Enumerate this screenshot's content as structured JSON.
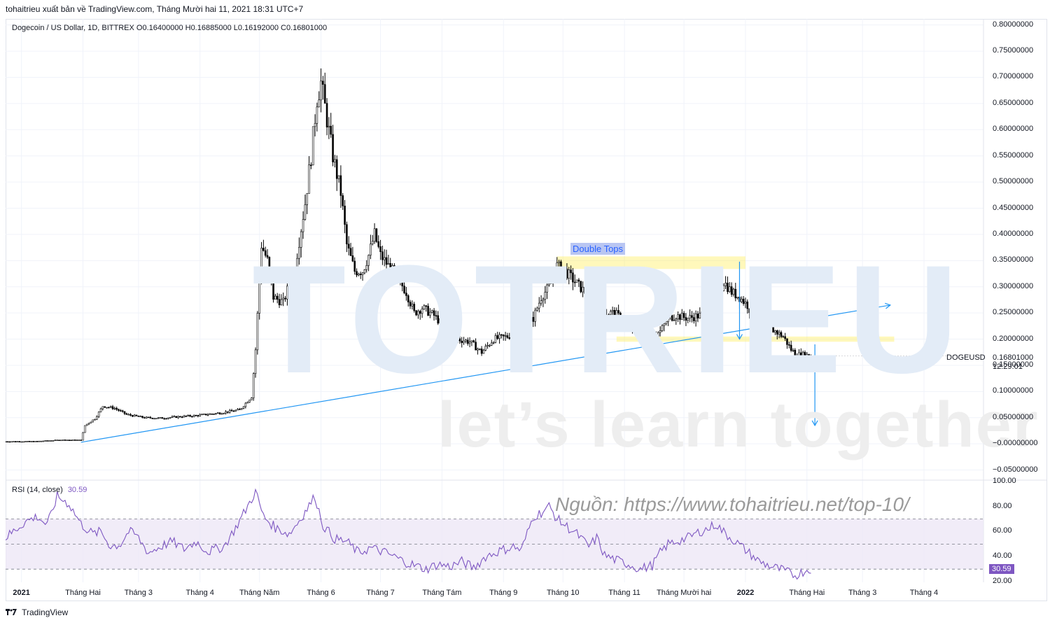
{
  "publisher_line": "tohaitrieu xuất bản về TradingView.com, Tháng Mười hai 11, 2021 18:31 UTC+7",
  "legend": {
    "text": "Dogecoin / US Dollar, 1D, BITTREX  O0.16400000  H0.16885000  L0.16192000  C0.16801000"
  },
  "rsi_legend": {
    "label": "RSI (14, close)",
    "value": "30.59"
  },
  "tags": {
    "symbol": "DOGEUSD",
    "price": "0.16801000",
    "countdown": "12:29:01",
    "rsi": "30.59"
  },
  "annotation": {
    "double_tops": "Double Tops"
  },
  "watermark": {
    "word": "TOTRIEU",
    "tagline": "let’s learn together"
  },
  "source": "Nguồn: https://www.tohaitrieu.net/top-10/",
  "footer": {
    "brand": "TradingView",
    "icon": "tradingview-logo-icon"
  },
  "colors": {
    "candle": "#000000",
    "trendline": "#2196f3",
    "zone": "#ffeb3b",
    "rsi_line": "#7e57c2",
    "rsi_band": "#ede7f6",
    "grid": "#f0f3fa"
  },
  "chart_data": [
    {
      "type": "candlestick",
      "title": "Dogecoin / US Dollar, 1D, BITTREX",
      "ylim": [
        -0.0693,
        0.8116
      ],
      "y_ticks": [
        "0.80000000",
        "0.75000000",
        "0.70000000",
        "0.65000000",
        "0.60000000",
        "0.55000000",
        "0.50000000",
        "0.45000000",
        "0.40000000",
        "0.35000000",
        "0.30000000",
        "0.25000000",
        "0.20000000",
        "0.15000000",
        "0.10000000",
        "0.05000000",
        "−0.00000000",
        "−0.05000000"
      ],
      "x_ticks": [
        "2021",
        "Tháng Hai",
        "Tháng 3",
        "Tháng 4",
        "Tháng Năm",
        "Tháng 6",
        "Tháng 7",
        "Tháng Tám",
        "Tháng 9",
        "Tháng 10",
        "Tháng 11",
        "Tháng Mười hai",
        "2022",
        "Tháng Hai",
        "Tháng 3",
        "Tháng 4"
      ],
      "x_ticks_bold": [
        "2021",
        "2022"
      ],
      "x_day_range": [
        -8,
        485
      ],
      "tick_days": [
        0,
        31,
        59,
        90,
        120,
        151,
        181,
        212,
        243,
        273,
        304,
        334,
        365,
        396,
        424,
        455
      ],
      "close_path": [
        [
          -8,
          0.0045
        ],
        [
          7,
          0.0047
        ],
        [
          20,
          0.0075
        ],
        [
          30,
          0.0072
        ],
        [
          32,
          0.035
        ],
        [
          37,
          0.048
        ],
        [
          41,
          0.072
        ],
        [
          47,
          0.068
        ],
        [
          53,
          0.056
        ],
        [
          62,
          0.05
        ],
        [
          70,
          0.049
        ],
        [
          80,
          0.052
        ],
        [
          88,
          0.054
        ],
        [
          100,
          0.059
        ],
        [
          110,
          0.065
        ],
        [
          116,
          0.09
        ],
        [
          118,
          0.18
        ],
        [
          121,
          0.38
        ],
        [
          124,
          0.35
        ],
        [
          127,
          0.28
        ],
        [
          132,
          0.27
        ],
        [
          138,
          0.34
        ],
        [
          143,
          0.46
        ],
        [
          146,
          0.55
        ],
        [
          149,
          0.66
        ],
        [
          151,
          0.69
        ],
        [
          154,
          0.62
        ],
        [
          157,
          0.55
        ],
        [
          161,
          0.48
        ],
        [
          164,
          0.38
        ],
        [
          168,
          0.33
        ],
        [
          172,
          0.33
        ],
        [
          175,
          0.36
        ],
        [
          178,
          0.4
        ],
        [
          181,
          0.36
        ],
        [
          185,
          0.34
        ],
        [
          189,
          0.32
        ],
        [
          194,
          0.29
        ],
        [
          198,
          0.25
        ],
        [
          202,
          0.26
        ],
        [
          208,
          0.245
        ],
        [
          214,
          0.22
        ],
        [
          220,
          0.2
        ],
        [
          226,
          0.195
        ],
        [
          232,
          0.175
        ],
        [
          238,
          0.2
        ],
        [
          245,
          0.205
        ],
        [
          252,
          0.215
        ],
        [
          258,
          0.24
        ],
        [
          262,
          0.28
        ],
        [
          266,
          0.3
        ],
        [
          270,
          0.34
        ],
        [
          274,
          0.33
        ],
        [
          279,
          0.31
        ],
        [
          284,
          0.29
        ],
        [
          290,
          0.31
        ],
        [
          294,
          0.25
        ],
        [
          299,
          0.25
        ],
        [
          304,
          0.235
        ],
        [
          310,
          0.21
        ],
        [
          316,
          0.2
        ],
        [
          322,
          0.215
        ],
        [
          326,
          0.24
        ],
        [
          330,
          0.245
        ],
        [
          336,
          0.24
        ],
        [
          342,
          0.245
        ],
        [
          346,
          0.255
        ],
        [
          350,
          0.27
        ],
        [
          354,
          0.31
        ],
        [
          358,
          0.29
        ],
        [
          362,
          0.28
        ],
        [
          366,
          0.265
        ],
        [
          370,
          0.235
        ],
        [
          375,
          0.225
        ],
        [
          380,
          0.215
        ],
        [
          384,
          0.205
        ],
        [
          388,
          0.18
        ],
        [
          391,
          0.17
        ],
        [
          395,
          0.17
        ],
        [
          398,
          0.168
        ]
      ],
      "trendline": [
        [
          30,
          0.003
        ],
        [
          438,
          0.265
        ]
      ],
      "resistance_zone": [
        0.334,
        0.358
      ],
      "support_zone": [
        0.195,
        0.205
      ],
      "measure_arrows": [
        {
          "x": 362,
          "y_from": 0.348,
          "y_to": 0.2
        },
        {
          "x": 400,
          "y_from": 0.19,
          "y_to": 0.035
        }
      ],
      "last_price": 0.16801
    },
    {
      "type": "line",
      "title": "RSI (14, close)",
      "ylim": [
        19.5,
        101
      ],
      "y_ticks": [
        "100.00",
        "80.00",
        "60.00",
        "40.00",
        "20.00"
      ],
      "overbought": 70,
      "midline": 50,
      "oversold": 30,
      "series": [
        {
          "values": [
            [
              -8,
              55
            ],
            [
              2,
              68
            ],
            [
              8,
              72
            ],
            [
              13,
              65
            ],
            [
              18,
              88
            ],
            [
              24,
              82
            ],
            [
              30,
              66
            ],
            [
              36,
              58
            ],
            [
              40,
              60
            ],
            [
              45,
              48
            ],
            [
              50,
              50
            ],
            [
              54,
              60
            ],
            [
              58,
              57
            ],
            [
              64,
              43
            ],
            [
              70,
              48
            ],
            [
              76,
              52
            ],
            [
              82,
              46
            ],
            [
              88,
              52
            ],
            [
              94,
              44
            ],
            [
              102,
              48
            ],
            [
              108,
              63
            ],
            [
              114,
              80
            ],
            [
              118,
              92
            ],
            [
              122,
              72
            ],
            [
              128,
              63
            ],
            [
              135,
              58
            ],
            [
              141,
              71
            ],
            [
              148,
              88
            ],
            [
              152,
              65
            ],
            [
              158,
              54
            ],
            [
              164,
              52
            ],
            [
              170,
              43
            ],
            [
              176,
              47
            ],
            [
              182,
              44
            ],
            [
              188,
              40
            ],
            [
              193,
              36
            ],
            [
              198,
              33
            ],
            [
              204,
              30
            ],
            [
              210,
              34
            ],
            [
              216,
              32
            ],
            [
              222,
              36
            ],
            [
              228,
              31
            ],
            [
              234,
              40
            ],
            [
              240,
              44
            ],
            [
              248,
              48
            ],
            [
              252,
              45
            ],
            [
              258,
              72
            ],
            [
              262,
              75
            ],
            [
              266,
              80
            ],
            [
              270,
              70
            ],
            [
              274,
              65
            ],
            [
              280,
              58
            ],
            [
              286,
              48
            ],
            [
              290,
              55
            ],
            [
              294,
              41
            ],
            [
              300,
              37
            ],
            [
              306,
              34
            ],
            [
              312,
              30
            ],
            [
              318,
              33
            ],
            [
              322,
              43
            ],
            [
              326,
              50
            ],
            [
              330,
              52
            ],
            [
              336,
              55
            ],
            [
              342,
              60
            ],
            [
              346,
              62
            ],
            [
              350,
              66
            ],
            [
              355,
              58
            ],
            [
              360,
              52
            ],
            [
              366,
              44
            ],
            [
              372,
              36
            ],
            [
              378,
              32
            ],
            [
              384,
              29
            ],
            [
              390,
              25
            ],
            [
              394,
              28
            ],
            [
              398,
              30.6
            ]
          ]
        }
      ],
      "last_value": 30.59
    }
  ]
}
